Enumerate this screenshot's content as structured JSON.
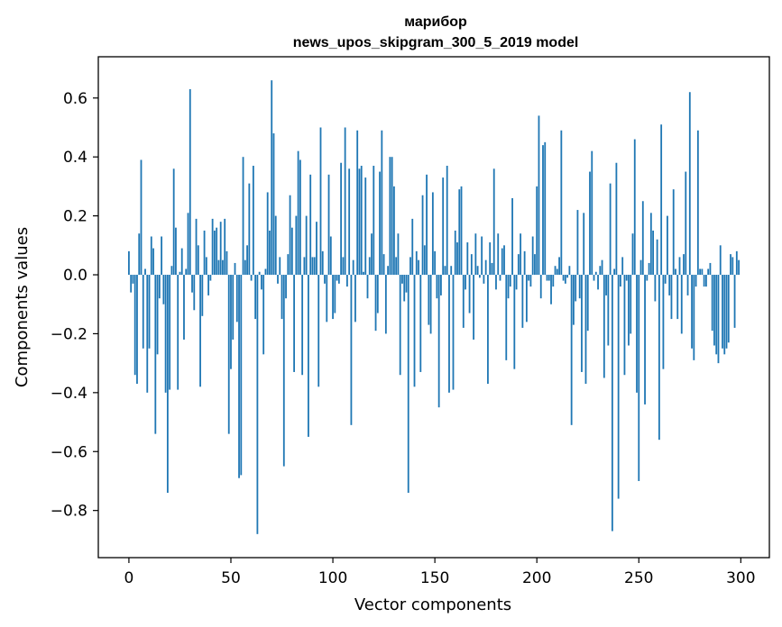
{
  "chart_data": {
    "type": "bar",
    "title_line1": "марибор",
    "title_line2": "news_upos_skipgram_300_5_2019 model",
    "xlabel": "Vector components",
    "ylabel": "Components values",
    "xlim": [
      -15,
      314
    ],
    "ylim": [
      -0.96,
      0.74
    ],
    "x_ticks": [
      0,
      50,
      100,
      150,
      200,
      250,
      300
    ],
    "x_tick_labels": [
      "0",
      "50",
      "100",
      "150",
      "200",
      "250",
      "300"
    ],
    "y_ticks": [
      -0.8,
      -0.6,
      -0.4,
      -0.2,
      0.0,
      0.2,
      0.4,
      0.6
    ],
    "y_tick_labels": [
      "−0.8",
      "−0.6",
      "−0.4",
      "−0.2",
      "0.0",
      "0.2",
      "0.4",
      "0.6"
    ],
    "bar_color": "#1f77b4",
    "values": [
      0.08,
      -0.06,
      -0.03,
      -0.34,
      -0.37,
      0.14,
      0.39,
      -0.25,
      0.02,
      -0.4,
      -0.25,
      0.13,
      0.09,
      -0.54,
      -0.27,
      -0.08,
      0.13,
      -0.1,
      -0.4,
      -0.74,
      -0.39,
      0.03,
      0.36,
      0.16,
      -0.39,
      0.01,
      0.09,
      -0.22,
      0.02,
      0.21,
      0.63,
      -0.06,
      -0.12,
      0.19,
      0.1,
      -0.38,
      -0.14,
      0.15,
      0.06,
      -0.07,
      -0.02,
      0.19,
      0.15,
      0.16,
      0.05,
      0.18,
      0.05,
      0.19,
      0.08,
      -0.54,
      -0.32,
      -0.22,
      0.04,
      -0.16,
      -0.69,
      -0.68,
      0.4,
      0.05,
      0.1,
      0.31,
      -0.02,
      0.37,
      -0.15,
      -0.88,
      0.01,
      -0.05,
      -0.27,
      0.02,
      0.28,
      0.15,
      0.66,
      0.48,
      0.2,
      -0.03,
      0.06,
      -0.15,
      -0.65,
      -0.08,
      0.07,
      0.27,
      0.16,
      -0.33,
      0.2,
      0.42,
      0.39,
      -0.34,
      0.06,
      0.2,
      -0.55,
      0.34,
      0.06,
      0.06,
      0.18,
      -0.38,
      0.5,
      0.08,
      -0.03,
      -0.16,
      0.34,
      0.13,
      -0.15,
      -0.13,
      -0.02,
      -0.03,
      0.38,
      0.06,
      0.5,
      -0.04,
      0.36,
      -0.51,
      0.05,
      -0.16,
      0.49,
      0.36,
      0.37,
      0.01,
      0.33,
      -0.08,
      0.06,
      0.14,
      0.37,
      -0.19,
      -0.13,
      0.35,
      0.49,
      0.07,
      -0.2,
      0.03,
      0.4,
      0.4,
      0.3,
      0.06,
      0.14,
      -0.34,
      -0.03,
      -0.09,
      -0.06,
      -0.74,
      0.06,
      0.19,
      -0.38,
      0.08,
      0.05,
      -0.33,
      0.27,
      0.1,
      0.34,
      -0.17,
      -0.2,
      0.28,
      0.08,
      -0.08,
      -0.45,
      -0.07,
      0.33,
      0.03,
      0.37,
      -0.4,
      0.03,
      -0.39,
      0.15,
      0.11,
      0.29,
      0.3,
      -0.18,
      -0.05,
      0.11,
      -0.13,
      0.07,
      -0.22,
      0.14,
      0.03,
      -0.01,
      0.13,
      -0.03,
      0.05,
      -0.37,
      0.11,
      0.04,
      0.36,
      -0.05,
      0.14,
      -0.02,
      0.09,
      0.1,
      -0.29,
      -0.08,
      -0.04,
      0.26,
      -0.32,
      -0.05,
      0.07,
      0.14,
      -0.18,
      0.08,
      -0.16,
      -0.02,
      -0.04,
      0.13,
      0.07,
      0.3,
      0.54,
      -0.08,
      0.44,
      0.45,
      -0.02,
      -0.02,
      -0.1,
      -0.04,
      0.03,
      0.02,
      0.06,
      0.49,
      -0.02,
      -0.03,
      -0.01,
      0.03,
      -0.51,
      -0.17,
      -0.09,
      0.22,
      -0.08,
      -0.33,
      0.21,
      -0.37,
      -0.19,
      0.35,
      0.42,
      -0.02,
      0.01,
      -0.05,
      0.03,
      0.05,
      -0.35,
      -0.07,
      -0.24,
      0.31,
      -0.87,
      0.02,
      0.38,
      -0.76,
      -0.04,
      0.06,
      -0.34,
      -0.02,
      -0.24,
      -0.2,
      0.14,
      0.46,
      -0.4,
      -0.7,
      0.05,
      0.25,
      -0.44,
      -0.02,
      0.04,
      0.21,
      0.15,
      -0.09,
      0.12,
      -0.56,
      0.51,
      -0.32,
      -0.03,
      0.2,
      -0.07,
      -0.15,
      0.29,
      0.02,
      -0.15,
      0.06,
      -0.2,
      0.07,
      0.35,
      -0.07,
      0.62,
      -0.25,
      -0.29,
      -0.04,
      0.49,
      0.02,
      0.02,
      -0.04,
      -0.04,
      0.02,
      0.04,
      -0.19,
      -0.24,
      -0.27,
      -0.3,
      0.1,
      -0.25,
      -0.27,
      -0.25,
      -0.23,
      0.07,
      0.06,
      -0.18,
      0.08,
      0.05
    ]
  }
}
